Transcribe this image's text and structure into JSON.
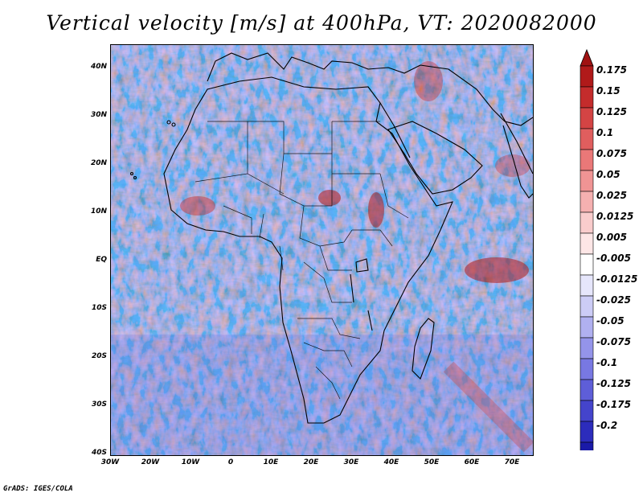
{
  "title": "Vertical velocity [m/s] at 400hPa, VT: 2020082000",
  "footer": "GrADS: IGES/COLA",
  "map": {
    "variable": "Vertical velocity",
    "units": "m/s",
    "level": "400hPa",
    "valid_time": "2020082000",
    "lat_labels": [
      "40N",
      "30N",
      "20N",
      "10N",
      "EQ",
      "10S",
      "20S",
      "30S",
      "40S"
    ],
    "lon_labels": [
      "30W",
      "20W",
      "10W",
      "0",
      "10E",
      "20E",
      "30E",
      "40E",
      "50E",
      "60E",
      "70E"
    ]
  },
  "colorbar": {
    "labels": [
      "0.175",
      "0.15",
      "0.125",
      "0.1",
      "0.075",
      "0.05",
      "0.025",
      "0.0125",
      "0.005",
      "-0.005",
      "-0.0125",
      "-0.025",
      "-0.05",
      "-0.075",
      "-0.1",
      "-0.125",
      "-0.175",
      "-0.2"
    ],
    "colors": [
      "#b01a1a",
      "#c42c2c",
      "#d44444",
      "#e05e5e",
      "#ea7878",
      "#f09494",
      "#f5b0b0",
      "#f9cccc",
      "#fde6e6",
      "#ffffff",
      "#e6e6fb",
      "#ccccf6",
      "#b0b0f0",
      "#9494ea",
      "#7878e2",
      "#5e5ed8",
      "#4444cc",
      "#2c2cbc",
      "#1a1aa8"
    ],
    "top_arrow_color": "#a01212",
    "bottom_arrow_color": "#10108a"
  }
}
